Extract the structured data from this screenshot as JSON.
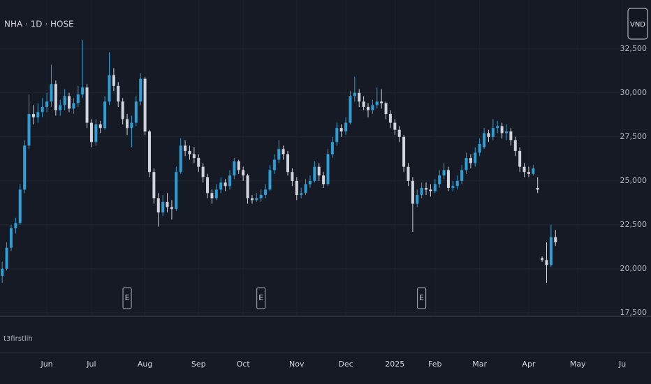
{
  "chart_data": {
    "type": "candlestick",
    "title": "NHA · 1D · HOSE",
    "currency": "VND",
    "indicator": "t3firstlih",
    "up_color": "#2e9fd6",
    "down_color": "#d1d4dc",
    "grid": true,
    "ylim": [
      17340,
      35270
    ],
    "yticks": [
      {
        "value": 17500,
        "label": "17,500"
      },
      {
        "value": 20000,
        "label": "20,000"
      },
      {
        "value": 22500,
        "label": "22,500"
      },
      {
        "value": 25000,
        "label": "25,000"
      },
      {
        "value": 27500,
        "label": "27,500"
      },
      {
        "value": 30000,
        "label": "30,000"
      },
      {
        "value": 32500,
        "label": "32,500"
      }
    ],
    "xlim": [
      -0.5,
      139.3
    ],
    "xticks": [
      {
        "value": 10,
        "label": "Jun"
      },
      {
        "value": 20,
        "label": "Jul"
      },
      {
        "value": 32,
        "label": "Aug"
      },
      {
        "value": 44,
        "label": "Sep"
      },
      {
        "value": 54,
        "label": "Oct"
      },
      {
        "value": 66,
        "label": "Nov"
      },
      {
        "value": 77,
        "label": "Dec"
      },
      {
        "value": 88,
        "label": "2025"
      },
      {
        "value": 97,
        "label": "Feb"
      },
      {
        "value": 107,
        "label": "Mar"
      },
      {
        "value": 118,
        "label": "Apr"
      },
      {
        "value": 129,
        "label": "May"
      },
      {
        "value": 139,
        "label": "Ju"
      }
    ],
    "events": [
      {
        "index": 28,
        "label": "E"
      },
      {
        "index": 58,
        "label": "E"
      },
      {
        "index": 94,
        "label": "E"
      }
    ],
    "ohlc": [
      [
        19600,
        20400,
        19200,
        20000
      ],
      [
        20000,
        21500,
        19900,
        21200
      ],
      [
        21200,
        22500,
        21000,
        22300
      ],
      [
        22300,
        22900,
        22000,
        22600
      ],
      [
        22600,
        24800,
        22500,
        24500
      ],
      [
        24500,
        27300,
        24300,
        27000
      ],
      [
        27000,
        29900,
        26800,
        28800
      ],
      [
        28800,
        29300,
        28200,
        28600
      ],
      [
        28600,
        29400,
        28300,
        28900
      ],
      [
        28900,
        29700,
        28600,
        29200
      ],
      [
        29200,
        30000,
        28900,
        29500
      ],
      [
        29500,
        31600,
        29200,
        30500
      ],
      [
        30500,
        30700,
        28700,
        29000
      ],
      [
        29000,
        29600,
        28700,
        29300
      ],
      [
        29300,
        30200,
        29000,
        29800
      ],
      [
        29800,
        30000,
        28900,
        29100
      ],
      [
        29100,
        29700,
        28800,
        29400
      ],
      [
        29400,
        30400,
        29200,
        29900
      ],
      [
        29900,
        33000,
        29700,
        30300
      ],
      [
        30300,
        30500,
        28000,
        28300
      ],
      [
        28300,
        28500,
        26900,
        27200
      ],
      [
        27200,
        28500,
        27000,
        28200
      ],
      [
        28200,
        28400,
        27700,
        28000
      ],
      [
        28000,
        29800,
        27900,
        29500
      ],
      [
        29500,
        32300,
        29300,
        31000
      ],
      [
        31000,
        31400,
        30100,
        30400
      ],
      [
        30400,
        30600,
        29200,
        29500
      ],
      [
        29500,
        29700,
        28200,
        28500
      ],
      [
        28500,
        28800,
        27600,
        28000
      ],
      [
        28000,
        28700,
        26900,
        28300
      ],
      [
        28300,
        29800,
        28100,
        29500
      ],
      [
        29500,
        31100,
        29300,
        30800
      ],
      [
        30800,
        30900,
        27600,
        27800
      ],
      [
        27800,
        27900,
        25200,
        25500
      ],
      [
        25500,
        25700,
        23700,
        24000
      ],
      [
        24000,
        24300,
        22400,
        23200
      ],
      [
        23200,
        24200,
        23000,
        23800
      ],
      [
        23800,
        24300,
        23200,
        23500
      ],
      [
        23500,
        23900,
        22800,
        23400
      ],
      [
        23400,
        25800,
        23300,
        25500
      ],
      [
        25500,
        27400,
        25400,
        27000
      ],
      [
        27000,
        27300,
        26400,
        26700
      ],
      [
        26700,
        27000,
        26200,
        26500
      ],
      [
        26500,
        26900,
        26000,
        26300
      ],
      [
        26300,
        26500,
        25500,
        25800
      ],
      [
        25800,
        26000,
        24900,
        25200
      ],
      [
        25200,
        25400,
        24000,
        24300
      ],
      [
        24300,
        24500,
        23700,
        24000
      ],
      [
        24000,
        24800,
        23900,
        24500
      ],
      [
        24500,
        25200,
        24300,
        24900
      ],
      [
        24900,
        25100,
        24400,
        24700
      ],
      [
        24700,
        25600,
        24500,
        25300
      ],
      [
        25300,
        26300,
        25100,
        26100
      ],
      [
        26100,
        26200,
        25400,
        25600
      ],
      [
        25600,
        25800,
        25000,
        25300
      ],
      [
        25300,
        25400,
        23700,
        24000
      ],
      [
        24000,
        24200,
        23700,
        23900
      ],
      [
        23900,
        24300,
        23800,
        24000
      ],
      [
        24000,
        24500,
        23800,
        24200
      ],
      [
        24200,
        24800,
        24000,
        24500
      ],
      [
        24500,
        25900,
        24400,
        25600
      ],
      [
        25600,
        26500,
        25400,
        26200
      ],
      [
        26200,
        27300,
        26000,
        26800
      ],
      [
        26800,
        27000,
        26200,
        26500
      ],
      [
        26500,
        26700,
        25300,
        25500
      ],
      [
        25500,
        25700,
        24700,
        25000
      ],
      [
        25000,
        25200,
        23900,
        24200
      ],
      [
        24200,
        24600,
        24000,
        24300
      ],
      [
        24300,
        25100,
        24200,
        24800
      ],
      [
        24800,
        25300,
        24600,
        25000
      ],
      [
        25000,
        26100,
        24900,
        25800
      ],
      [
        25800,
        26000,
        25000,
        25300
      ],
      [
        25300,
        25500,
        24600,
        24800
      ],
      [
        24800,
        26800,
        24700,
        26500
      ],
      [
        26500,
        27500,
        26300,
        27200
      ],
      [
        27200,
        28300,
        27000,
        28000
      ],
      [
        28000,
        28200,
        27500,
        27800
      ],
      [
        27800,
        28600,
        27600,
        28300
      ],
      [
        28300,
        30100,
        28200,
        29800
      ],
      [
        29800,
        30900,
        29500,
        30000
      ],
      [
        30000,
        30200,
        29200,
        29500
      ],
      [
        29500,
        29800,
        29000,
        29200
      ],
      [
        29200,
        29400,
        28600,
        29000
      ],
      [
        29000,
        29600,
        28800,
        29300
      ],
      [
        29300,
        30300,
        29100,
        29500
      ],
      [
        29500,
        30200,
        29100,
        29400
      ],
      [
        29400,
        29500,
        28500,
        28800
      ],
      [
        28800,
        29000,
        28000,
        28300
      ],
      [
        28300,
        28500,
        27600,
        27900
      ],
      [
        27900,
        28100,
        27200,
        27500
      ],
      [
        27500,
        27600,
        25500,
        25800
      ],
      [
        25800,
        26000,
        24700,
        25000
      ],
      [
        25000,
        25200,
        22100,
        23700
      ],
      [
        23700,
        24500,
        23500,
        24200
      ],
      [
        24200,
        24900,
        24000,
        24600
      ],
      [
        24600,
        24900,
        24200,
        24500
      ],
      [
        24500,
        24800,
        24100,
        24400
      ],
      [
        24400,
        25100,
        24300,
        24800
      ],
      [
        24800,
        25600,
        24600,
        25300
      ],
      [
        25300,
        26000,
        25100,
        25600
      ],
      [
        25600,
        25800,
        24400,
        24600
      ],
      [
        24600,
        25000,
        24400,
        24700
      ],
      [
        24700,
        25300,
        24500,
        25000
      ],
      [
        25000,
        25900,
        24800,
        25600
      ],
      [
        25600,
        26600,
        25400,
        26300
      ],
      [
        26300,
        26500,
        25700,
        26000
      ],
      [
        26000,
        26900,
        25800,
        26600
      ],
      [
        26600,
        27400,
        26400,
        27100
      ],
      [
        26900,
        28000,
        26800,
        27700
      ],
      [
        27700,
        27900,
        27200,
        27500
      ],
      [
        27500,
        28500,
        27300,
        28000
      ],
      [
        28000,
        28400,
        27700,
        28100
      ],
      [
        28100,
        28300,
        27400,
        27700
      ],
      [
        27700,
        28200,
        27300,
        27800
      ],
      [
        27800,
        28000,
        27000,
        27300
      ],
      [
        27300,
        27500,
        26400,
        26700
      ],
      [
        26700,
        26900,
        25500,
        25800
      ],
      [
        25800,
        26000,
        25200,
        25500
      ],
      [
        25500,
        25800,
        25200,
        25400
      ],
      [
        25400,
        25900,
        25300,
        25700
      ],
      [
        24600,
        25200,
        24300,
        24500
      ],
      [
        20600,
        20700,
        20400,
        20500
      ],
      [
        20500,
        21500,
        19200,
        20200
      ],
      [
        20200,
        22500,
        20100,
        21800
      ],
      [
        21800,
        22200,
        21300,
        21500
      ]
    ]
  }
}
